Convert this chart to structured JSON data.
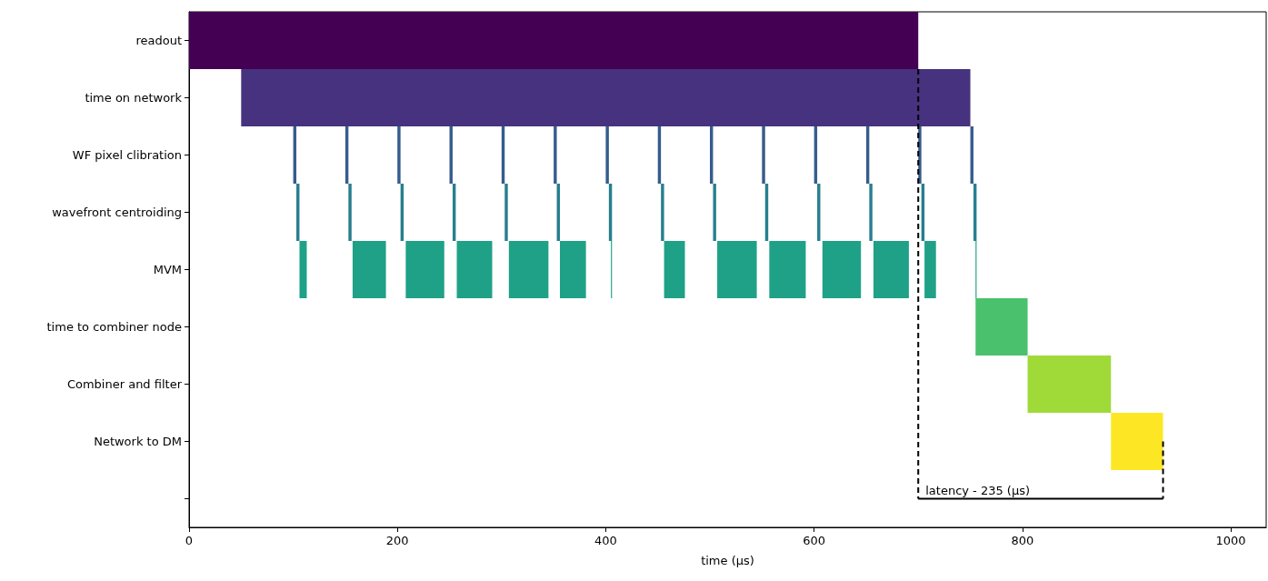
{
  "chart_data": {
    "type": "bar",
    "orientation": "horizontal",
    "xlabel": "time (μs)",
    "categories": [
      "readout",
      "time on network",
      "WF pixel clibration",
      "wavefront centroiding",
      "MVM",
      "time to combiner node",
      "Combiner and filter",
      "Network to DM",
      null
    ],
    "xlim": [
      0,
      1034
    ],
    "xticks": [
      0,
      200,
      400,
      600,
      800,
      1000
    ],
    "grid": false,
    "ref_lines": [
      {
        "axis": "x",
        "value": 700,
        "label": "latency - 235 (μs)",
        "color": "#000000",
        "line_style": "dashed"
      },
      {
        "axis": "x",
        "value": 935,
        "color": "#000000",
        "line_style": "dashed"
      }
    ],
    "series": [
      {
        "values": [
          700,
          700,
          null,
          null,
          null,
          50,
          80,
          50,
          null
        ],
        "base": [
          0,
          50,
          null,
          null,
          null,
          755,
          805,
          885,
          null
        ],
        "colors": [
          "#440154",
          "#46327e",
          null,
          null,
          null,
          "#4ac16d",
          "#a0da39",
          "#fde725",
          null
        ]
      },
      {
        "values": [
          null,
          null,
          3,
          3,
          7,
          null,
          null,
          null,
          null
        ],
        "base": [
          null,
          null,
          100,
          103,
          106,
          null,
          null,
          null,
          null
        ],
        "colors": [
          null,
          null,
          "#365c8d",
          "#277f8e",
          "#1fa187",
          null,
          null,
          null,
          null
        ]
      },
      {
        "values": [
          null,
          null,
          3,
          3,
          32,
          null,
          null,
          null,
          null
        ],
        "base": [
          null,
          null,
          150,
          153,
          157,
          null,
          null,
          null,
          null
        ],
        "colors": [
          null,
          null,
          "#365c8d",
          "#277f8e",
          "#1fa187",
          null,
          null,
          null,
          null
        ]
      },
      {
        "values": [
          null,
          null,
          3,
          3,
          37,
          null,
          null,
          null,
          null
        ],
        "base": [
          null,
          null,
          200,
          203,
          208,
          null,
          null,
          null,
          null
        ],
        "colors": [
          null,
          null,
          "#365c8d",
          "#277f8e",
          "#1fa187",
          null,
          null,
          null,
          null
        ]
      },
      {
        "values": [
          null,
          null,
          3,
          3,
          34,
          null,
          null,
          null,
          null
        ],
        "base": [
          null,
          null,
          250,
          253,
          257,
          null,
          null,
          null,
          null
        ],
        "colors": [
          null,
          null,
          "#365c8d",
          "#277f8e",
          "#1fa187",
          null,
          null,
          null,
          null
        ]
      },
      {
        "values": [
          null,
          null,
          3,
          3,
          38,
          null,
          null,
          null,
          null
        ],
        "base": [
          null,
          null,
          300,
          303,
          307,
          null,
          null,
          null,
          null
        ],
        "colors": [
          null,
          null,
          "#365c8d",
          "#277f8e",
          "#1fa187",
          null,
          null,
          null,
          null
        ]
      },
      {
        "values": [
          null,
          null,
          3,
          3,
          25,
          null,
          null,
          null,
          null
        ],
        "base": [
          null,
          null,
          350,
          353,
          356,
          null,
          null,
          null,
          null
        ],
        "colors": [
          null,
          null,
          "#365c8d",
          "#277f8e",
          "#1fa187",
          null,
          null,
          null,
          null
        ]
      },
      {
        "values": [
          null,
          null,
          3,
          3,
          1,
          null,
          null,
          null,
          null
        ],
        "base": [
          null,
          null,
          400,
          403,
          405,
          null,
          null,
          null,
          null
        ],
        "colors": [
          null,
          null,
          "#365c8d",
          "#277f8e",
          "#1fa187",
          null,
          null,
          null,
          null
        ]
      },
      {
        "values": [
          null,
          null,
          3,
          3,
          20,
          null,
          null,
          null,
          null
        ],
        "base": [
          null,
          null,
          450,
          453,
          456,
          null,
          null,
          null,
          null
        ],
        "colors": [
          null,
          null,
          "#365c8d",
          "#277f8e",
          "#1fa187",
          null,
          null,
          null,
          null
        ]
      },
      {
        "values": [
          null,
          null,
          3,
          3,
          38,
          null,
          null,
          null,
          null
        ],
        "base": [
          null,
          null,
          500,
          503,
          507,
          null,
          null,
          null,
          null
        ],
        "colors": [
          null,
          null,
          "#365c8d",
          "#277f8e",
          "#1fa187",
          null,
          null,
          null,
          null
        ]
      },
      {
        "values": [
          null,
          null,
          3,
          3,
          35,
          null,
          null,
          null,
          null
        ],
        "base": [
          null,
          null,
          550,
          553,
          557,
          null,
          null,
          null,
          null
        ],
        "colors": [
          null,
          null,
          "#365c8d",
          "#277f8e",
          "#1fa187",
          null,
          null,
          null,
          null
        ]
      },
      {
        "values": [
          null,
          null,
          3,
          3,
          37,
          null,
          null,
          null,
          null
        ],
        "base": [
          null,
          null,
          600,
          603,
          608,
          null,
          null,
          null,
          null
        ],
        "colors": [
          null,
          null,
          "#365c8d",
          "#277f8e",
          "#1fa187",
          null,
          null,
          null,
          null
        ]
      },
      {
        "values": [
          null,
          null,
          3,
          3,
          34,
          null,
          null,
          null,
          null
        ],
        "base": [
          null,
          null,
          650,
          653,
          657,
          null,
          null,
          null,
          null
        ],
        "colors": [
          null,
          null,
          "#365c8d",
          "#277f8e",
          "#1fa187",
          null,
          null,
          null,
          null
        ]
      },
      {
        "values": [
          null,
          null,
          3,
          3,
          11,
          null,
          null,
          null,
          null
        ],
        "base": [
          null,
          null,
          700,
          703,
          706,
          null,
          null,
          null,
          null
        ],
        "colors": [
          null,
          null,
          "#365c8d",
          "#277f8e",
          "#1fa187",
          null,
          null,
          null,
          null
        ]
      },
      {
        "values": [
          null,
          null,
          3,
          3,
          1,
          null,
          null,
          null,
          null
        ],
        "base": [
          null,
          null,
          750,
          753,
          755,
          null,
          null,
          null,
          null
        ],
        "colors": [
          null,
          null,
          "#365c8d",
          "#277f8e",
          "#1fa187",
          null,
          null,
          null,
          null
        ]
      }
    ]
  }
}
